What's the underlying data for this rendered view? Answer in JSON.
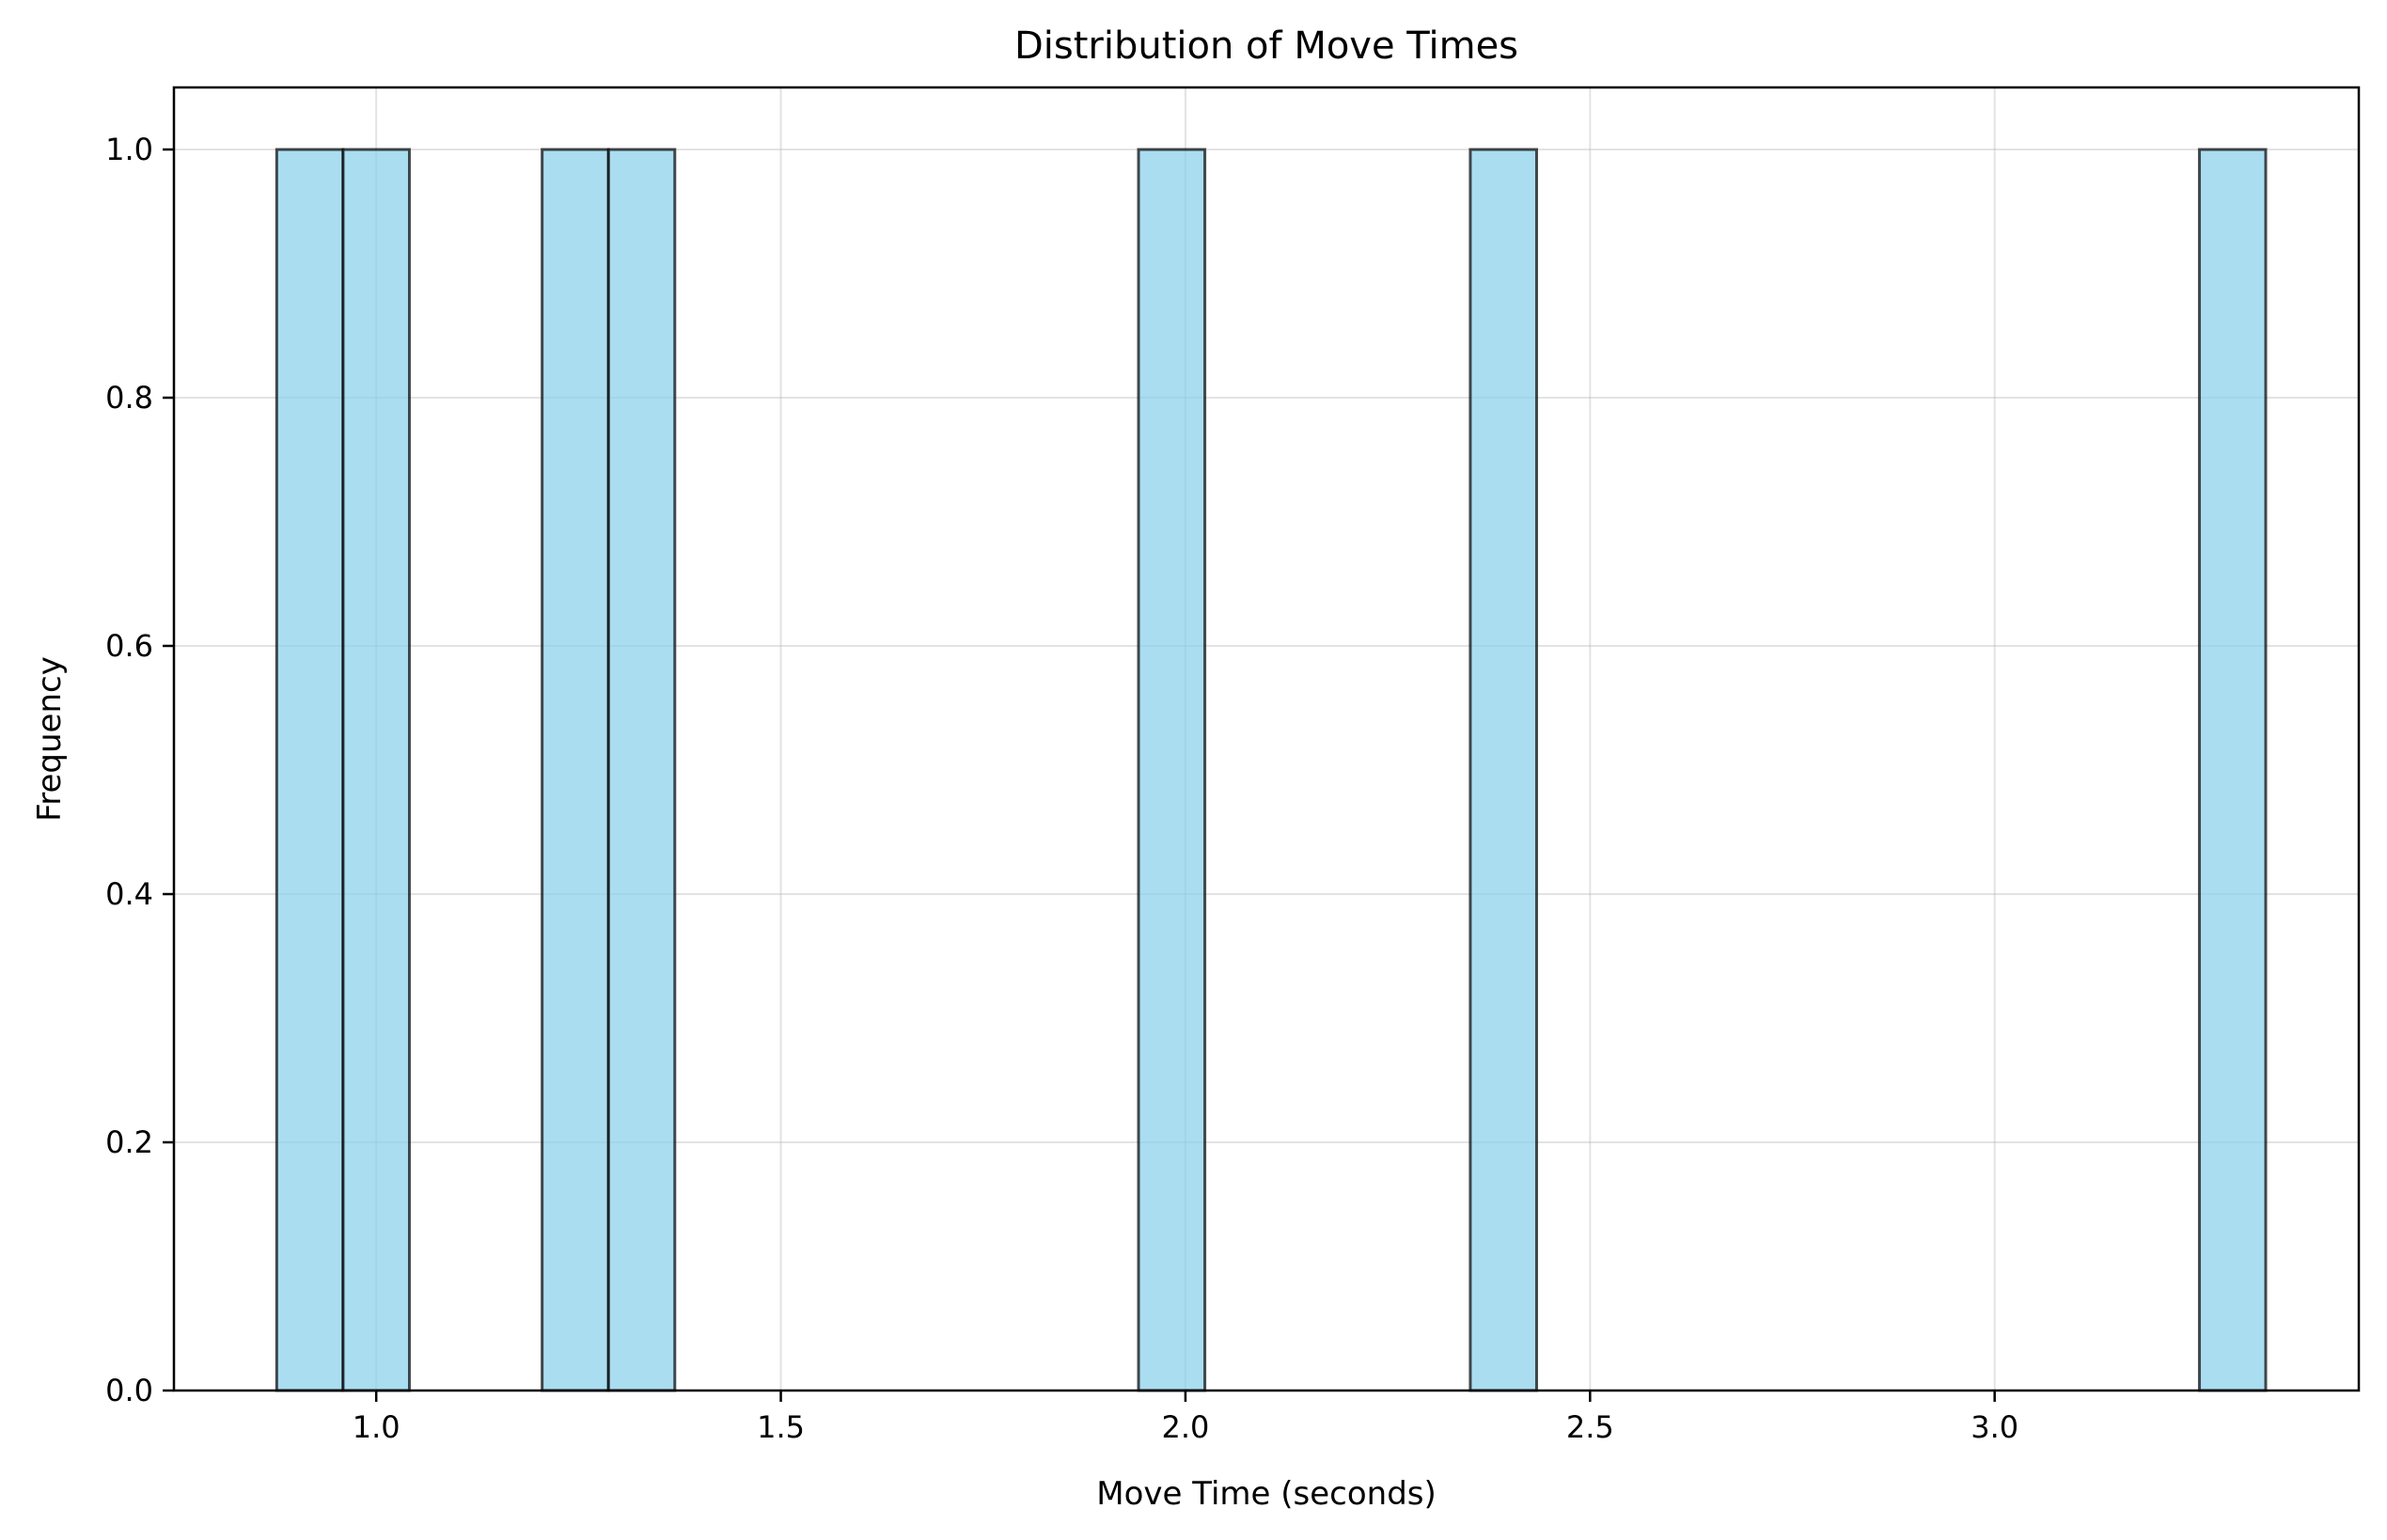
{
  "chart_data": {
    "type": "bar",
    "title": "Distribution of Move Times",
    "xlabel": "Move Time (seconds)",
    "ylabel": "Frequency",
    "xlim": [
      0.75,
      3.45
    ],
    "ylim": [
      0.0,
      1.05
    ],
    "x_ticks": [
      1.0,
      1.5,
      2.0,
      2.5,
      3.0
    ],
    "x_tick_labels": [
      "1.0",
      "1.5",
      "2.0",
      "2.5",
      "3.0"
    ],
    "y_ticks": [
      0.0,
      0.2,
      0.4,
      0.6,
      0.8,
      1.0
    ],
    "y_tick_labels": [
      "0.0",
      "0.2",
      "0.4",
      "0.6",
      "0.8",
      "1.0"
    ],
    "grid": true,
    "bins": [
      {
        "x_start": 0.877,
        "x_end": 0.959,
        "count": 1
      },
      {
        "x_start": 0.959,
        "x_end": 1.041,
        "count": 1
      },
      {
        "x_start": 1.205,
        "x_end": 1.287,
        "count": 1
      },
      {
        "x_start": 1.287,
        "x_end": 1.369,
        "count": 1
      },
      {
        "x_start": 1.942,
        "x_end": 2.024,
        "count": 1
      },
      {
        "x_start": 2.352,
        "x_end": 2.434,
        "count": 1
      },
      {
        "x_start": 3.253,
        "x_end": 3.335,
        "count": 1
      }
    ],
    "colors": {
      "bar_fill": "#87ceeb",
      "bar_fill_opacity": 0.7,
      "bar_edge": "#000000",
      "grid": "#b0b0b0"
    }
  }
}
